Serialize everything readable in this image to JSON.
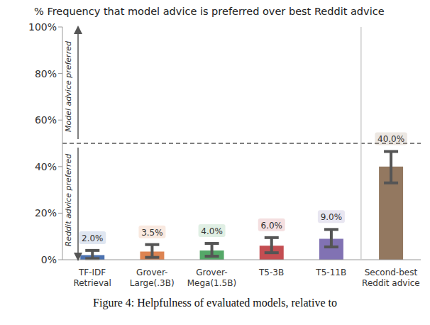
{
  "chart_data": {
    "type": "bar",
    "title": "% Frequency that model advice is preferred over best Reddit advice",
    "categories": [
      "TF-IDF\nRetrieval",
      "Grover-\nLarge(.3B)",
      "Grover-\nMega(1.5B)",
      "T5-3B",
      "T5-11B",
      "Second-best\nReddit advice"
    ],
    "values": [
      2.0,
      3.5,
      4.0,
      6.0,
      9.0,
      40.0
    ],
    "value_labels": [
      "2.0%",
      "3.5%",
      "4.0%",
      "6.0%",
      "9.0%",
      "40.0%"
    ],
    "error_low": [
      0.5,
      1,
      1.5,
      3,
      5.5,
      33
    ],
    "error_high": [
      4,
      6.5,
      7,
      9.5,
      13,
      46.5
    ],
    "colors": [
      "#4c72b0",
      "#dd8452",
      "#55a868",
      "#c44e52",
      "#8172b3",
      "#937860"
    ],
    "ylim": [
      0,
      100
    ],
    "yticks": [
      {
        "value": 0,
        "label": "0%"
      },
      {
        "value": 20,
        "label": "20%"
      },
      {
        "value": 40,
        "label": "40%"
      },
      {
        "value": 60,
        "label": "60%"
      },
      {
        "value": 80,
        "label": "80%"
      },
      {
        "value": 100,
        "label": "100%"
      }
    ],
    "threshold": 50,
    "annotations": [
      "Model advice preferred",
      "Reddit advice preferred"
    ],
    "caption": "Figure 4: Helpfulness of evaluated models, relative to",
    "data_labels": true,
    "grid": false
  }
}
